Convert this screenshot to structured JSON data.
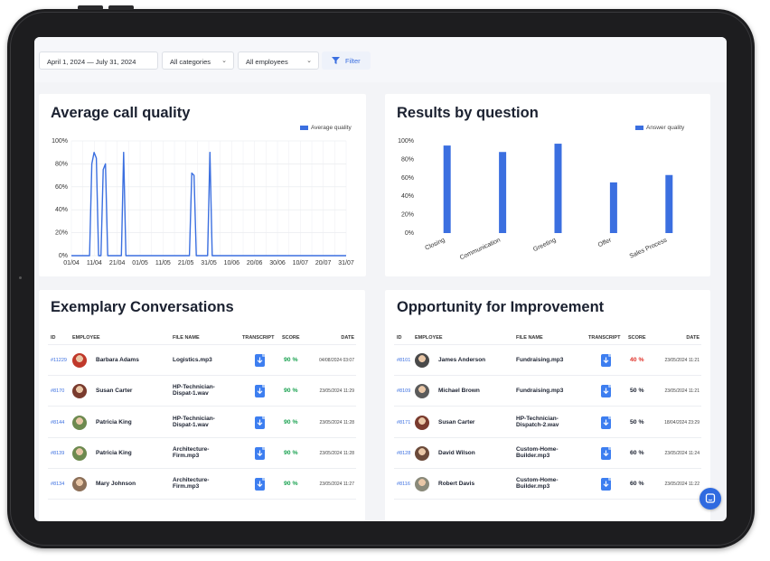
{
  "filters": {
    "date_range": "April 1, 2024 — July 31, 2024",
    "category": "All categories",
    "employee": "All employees",
    "filter_label": "Filter"
  },
  "colors": {
    "accent": "#3b6fe0",
    "good": "#1aa251",
    "bad": "#e0322a"
  },
  "avg_quality": {
    "title": "Average call quality",
    "legend": "Average quality",
    "chart_data": {
      "type": "line",
      "y_ticks": [
        "0%",
        "20%",
        "40%",
        "60%",
        "80%",
        "100%"
      ],
      "x_ticks": [
        "01/04",
        "11/04",
        "21/04",
        "01/05",
        "11/05",
        "21/05",
        "31/05",
        "10/06",
        "20/06",
        "30/06",
        "10/07",
        "20/07",
        "31/07"
      ],
      "ylim": [
        0,
        100
      ],
      "series": [
        {
          "name": "Average quality",
          "x": [
            "01/04",
            "09/04",
            "10/04",
            "11/04",
            "12/04",
            "13/04",
            "14/04",
            "15/04",
            "16/04",
            "17/04",
            "18/04",
            "19/04",
            "20/04",
            "21/04",
            "22/04",
            "23/04",
            "24/04",
            "25/04",
            "26/04",
            "27/04",
            "23/05",
            "24/05",
            "25/05",
            "26/05",
            "27/05",
            "31/05",
            "01/06",
            "02/06",
            "31/07"
          ],
          "values": [
            0,
            0,
            80,
            90,
            85,
            0,
            0,
            75,
            80,
            0,
            0,
            0,
            0,
            0,
            0,
            0,
            90,
            0,
            0,
            0,
            0,
            72,
            70,
            0,
            0,
            0,
            90,
            0,
            0
          ]
        }
      ]
    }
  },
  "results": {
    "title": "Results by question",
    "legend": "Answer quality",
    "chart_data": {
      "type": "bar",
      "y_ticks": [
        "0%",
        "20%",
        "40%",
        "60%",
        "80%",
        "100%"
      ],
      "categories": [
        "Closing",
        "Communication",
        "Greeting",
        "Offer",
        "Sales Process"
      ],
      "values": [
        95,
        88,
        97,
        55,
        63
      ],
      "ylim": [
        0,
        100
      ]
    }
  },
  "exemplary": {
    "title": "Exemplary Conversations",
    "headers": {
      "id": "ID",
      "employee": "EMPLOYEE",
      "file": "FILE NAME",
      "transcript": "TRANSCRIPT",
      "score": "SCORE",
      "date": "DATE"
    },
    "rows": [
      {
        "id": "#11229",
        "name": "Barbara Adams",
        "file1": "Logistics.mp3",
        "file2": "",
        "score": "90 %",
        "date": "04/08/2024 03:07",
        "avatar": "#c0392b"
      },
      {
        "id": "#8170",
        "name": "Susan Carter",
        "file1": "HP-Technician-",
        "file2": "Dispat-1.wav",
        "score": "90 %",
        "date": "23/05/2024 11:29",
        "avatar": "#7a3b2e"
      },
      {
        "id": "#8144",
        "name": "Patricia King",
        "file1": "HP-Technician-",
        "file2": "Dispat-1.wav",
        "score": "90 %",
        "date": "23/05/2024 11:28",
        "avatar": "#6d8a4f"
      },
      {
        "id": "#8139",
        "name": "Patricia King",
        "file1": "Architecture-",
        "file2": "Firm.mp3",
        "score": "90 %",
        "date": "23/05/2024 11:28",
        "avatar": "#6d8a4f"
      },
      {
        "id": "#8134",
        "name": "Mary Johnson",
        "file1": "Architecture-",
        "file2": "Firm.mp3",
        "score": "90 %",
        "date": "23/05/2024 11:27",
        "avatar": "#8c6f58"
      }
    ]
  },
  "improvement": {
    "title": "Opportunity for Improvement",
    "headers": {
      "id": "ID",
      "employee": "EMPLOYEE",
      "file": "FILE NAME",
      "transcript": "TRANSCRIPT",
      "score": "SCORE",
      "date": "DATE"
    },
    "rows": [
      {
        "id": "#8101",
        "name": "James Anderson",
        "file1": "Fundraising.mp3",
        "file2": "",
        "score": "40 %",
        "score_color": "#e0322a",
        "date": "23/05/2024 11:21",
        "avatar": "#4a4a4a"
      },
      {
        "id": "#8109",
        "name": "Michael Brown",
        "file1": "Fundraising.mp3",
        "file2": "",
        "score": "50 %",
        "score_color": "#1b2130",
        "date": "23/05/2024 11:21",
        "avatar": "#5b5b5b"
      },
      {
        "id": "#8171",
        "name": "Susan Carter",
        "file1": "HP-Technician-",
        "file2": "Dispatch-2.wav",
        "score": "50 %",
        "score_color": "#1b2130",
        "date": "18/04/2024 23:29",
        "avatar": "#7a3b2e"
      },
      {
        "id": "#8128",
        "name": "David Wilson",
        "file1": "Custom-Home-",
        "file2": "Builder.mp3",
        "score": "60 %",
        "score_color": "#1b2130",
        "date": "23/05/2024 11:24",
        "avatar": "#6b4a3a"
      },
      {
        "id": "#8116",
        "name": "Robert Davis",
        "file1": "Custom-Home-",
        "file2": "Builder.mp3",
        "score": "60 %",
        "score_color": "#1b2130",
        "date": "23/05/2024 11:22",
        "avatar": "#8a8a7a"
      }
    ]
  }
}
